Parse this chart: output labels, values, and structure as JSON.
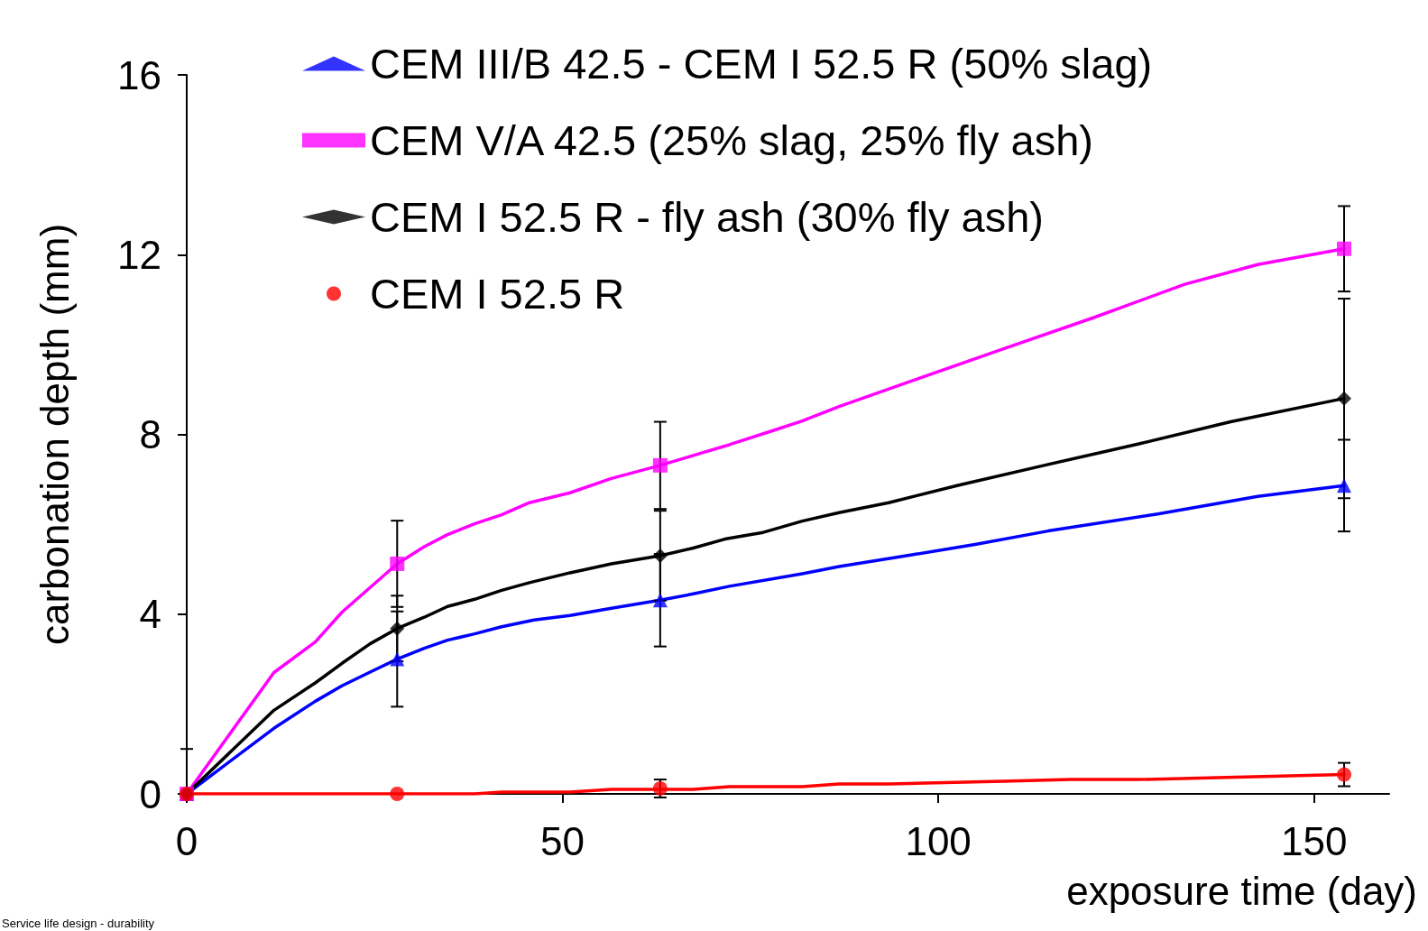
{
  "chart_data": {
    "type": "scatter",
    "xlabel": "exposure time (day)",
    "ylabel": "carbonation depth (mm)",
    "xlim": [
      0,
      160
    ],
    "xticks": [
      0,
      50,
      100,
      150
    ],
    "ylim": [
      0,
      16
    ],
    "yticks": [
      0,
      4,
      8,
      12,
      16
    ],
    "grid": false,
    "legend": "top",
    "annotations": [
      "Service life design - durability"
    ],
    "series": [
      {
        "name": "CEM III/B 42.5 - CEM I 52.5 R (50% slag)",
        "color": "#0000ff",
        "marker": "triangle",
        "x": [
          0,
          28,
          63,
          154
        ],
        "values": [
          0,
          3.0,
          4.31,
          6.86
        ],
        "errors": [
          null,
          1.06,
          1.03,
          1.02
        ]
      },
      {
        "name": "CEM V/A 42.5 (25% slag, 25% fly ash)",
        "color": "#ff00ff",
        "marker": "square",
        "x": [
          0,
          28,
          63,
          154
        ],
        "values": [
          0,
          5.12,
          7.31,
          12.13
        ],
        "errors": [
          null,
          0.96,
          0.97,
          0.95
        ]
      },
      {
        "name": "CEM I 52.5 R - fly ash (30% fly ash)",
        "color": "#000000",
        "marker": "diamond",
        "x": [
          0,
          28,
          63,
          154
        ],
        "values": [
          0,
          3.68,
          5.3,
          8.8
        ],
        "errors": [
          [
            0,
            1.0
          ],
          0.73,
          1.0,
          2.22
        ]
      },
      {
        "name": "CEM I 52.5 R",
        "color": "#ff0000",
        "marker": "circle",
        "x": [
          0,
          28,
          63,
          154
        ],
        "values": [
          0,
          0,
          0.12,
          0.43
        ],
        "errors": [
          null,
          null,
          0.2,
          0.26
        ]
      },
      {
        "color": "#0000ff",
        "type": "line",
        "marker": "none",
        "x": [
          0,
          11.6,
          17.1,
          20.7,
          24.4,
          28,
          31.6,
          34.7,
          38.3,
          41.9,
          46.2,
          51,
          56.5,
          63,
          67.4,
          72.2,
          81.9,
          86.8,
          96.5,
          104.9,
          114.6,
          129.2,
          142.5,
          154
        ],
        "values": [
          0,
          1.46,
          2.06,
          2.41,
          2.71,
          3.0,
          3.24,
          3.42,
          3.56,
          3.72,
          3.87,
          3.97,
          4.13,
          4.31,
          4.45,
          4.62,
          4.9,
          5.06,
          5.32,
          5.55,
          5.85,
          6.23,
          6.62,
          6.86
        ]
      },
      {
        "color": "#ff00ff",
        "type": "line",
        "marker": "none",
        "x": [
          0,
          11.6,
          17.1,
          20.7,
          28,
          31.6,
          34.7,
          38.3,
          41.9,
          45.6,
          51,
          56.5,
          63,
          67.4,
          72.2,
          78.3,
          81.9,
          86.8,
          96.5,
          108.6,
          120.7,
          132.8,
          142.5,
          154
        ],
        "values": [
          0,
          2.7,
          3.38,
          4.05,
          5.12,
          5.5,
          5.77,
          6.01,
          6.21,
          6.48,
          6.7,
          7.02,
          7.31,
          7.53,
          7.77,
          8.1,
          8.3,
          8.62,
          9.19,
          9.9,
          10.6,
          11.34,
          11.78,
          12.13
        ]
      },
      {
        "color": "#000000",
        "type": "line",
        "marker": "none",
        "x": [
          0,
          11.6,
          17.1,
          20.7,
          24.4,
          28,
          31.6,
          34.7,
          38.3,
          41.9,
          45.6,
          51,
          56.5,
          63,
          67.4,
          71.6,
          76.5,
          81.9,
          86.8,
          93.4,
          102.5,
          114.6,
          126.7,
          138.9,
          154
        ],
        "values": [
          0,
          1.86,
          2.47,
          2.91,
          3.34,
          3.68,
          3.93,
          4.17,
          4.33,
          4.53,
          4.7,
          4.92,
          5.12,
          5.3,
          5.47,
          5.67,
          5.81,
          6.07,
          6.26,
          6.48,
          6.86,
          7.33,
          7.79,
          8.28,
          8.8
        ]
      },
      {
        "color": "#ff0000",
        "type": "line",
        "marker": "none",
        "x": [
          0,
          28,
          38.3,
          41.9,
          51,
          56.5,
          67.4,
          72.2,
          81.9,
          86.8,
          93.4,
          108.6,
          117.7,
          126.7,
          154
        ],
        "values": [
          0,
          0,
          0,
          0.04,
          0.04,
          0.1,
          0.1,
          0.16,
          0.16,
          0.22,
          0.22,
          0.28,
          0.32,
          0.32,
          0.43
        ]
      }
    ]
  }
}
